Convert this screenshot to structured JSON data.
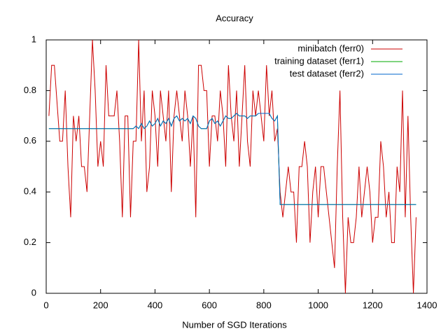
{
  "chart_data": {
    "type": "line",
    "title": "Accuracy",
    "xlabel": "Number of SGD Iterations",
    "x": [
      10,
      20,
      30,
      40,
      50,
      60,
      70,
      80,
      90,
      100,
      110,
      120,
      130,
      140,
      150,
      160,
      170,
      180,
      190,
      200,
      210,
      220,
      230,
      240,
      250,
      260,
      270,
      280,
      290,
      300,
      310,
      320,
      330,
      340,
      350,
      360,
      370,
      380,
      390,
      400,
      410,
      420,
      430,
      440,
      450,
      460,
      470,
      480,
      490,
      500,
      510,
      520,
      530,
      540,
      550,
      560,
      570,
      580,
      590,
      600,
      610,
      620,
      630,
      640,
      650,
      660,
      670,
      680,
      690,
      700,
      710,
      720,
      730,
      740,
      750,
      760,
      770,
      780,
      790,
      800,
      810,
      820,
      830,
      840,
      850,
      860,
      870,
      880,
      890,
      900,
      910,
      920,
      930,
      940,
      950,
      960,
      970,
      980,
      990,
      1000,
      1010,
      1020,
      1030,
      1040,
      1050,
      1060,
      1070,
      1080,
      1090,
      1100,
      1110,
      1120,
      1130,
      1140,
      1150,
      1160,
      1170,
      1180,
      1190,
      1200,
      1210,
      1220,
      1230,
      1240,
      1250,
      1260,
      1270,
      1280,
      1290,
      1300,
      1310,
      1320,
      1330,
      1340,
      1350,
      1360
    ],
    "series": [
      {
        "name": "minibatch (ferr0)",
        "color": "#cc0000",
        "values": [
          0.7,
          0.9,
          0.9,
          0.75,
          0.6,
          0.6,
          0.8,
          0.5,
          0.3,
          0.7,
          0.6,
          0.7,
          0.5,
          0.5,
          0.4,
          0.7,
          1,
          0.8,
          0.5,
          0.6,
          0.5,
          0.9,
          0.7,
          0.7,
          0.7,
          0.8,
          0.6,
          0.3,
          0.7,
          0.7,
          0.3,
          0.6,
          0.6,
          1,
          0.6,
          0.8,
          0.4,
          0.5,
          0.8,
          0.7,
          0.5,
          0.8,
          0.7,
          0.6,
          0.8,
          0.4,
          0.7,
          0.8,
          0.7,
          0.6,
          0.8,
          0.7,
          0.5,
          0.7,
          0.3,
          0.9,
          0.9,
          0.8,
          0.8,
          0.5,
          0.7,
          0.7,
          0.6,
          0.8,
          0.7,
          0.5,
          0.9,
          0.7,
          0.6,
          0.8,
          0.5,
          0.7,
          0.9,
          0.6,
          0.5,
          0.8,
          0.7,
          0.8,
          0.7,
          0.6,
          0.9,
          0.7,
          0.8,
          0.6,
          0.65,
          0.4,
          0.3,
          0.4,
          0.5,
          0.4,
          0.4,
          0.2,
          0.5,
          0.5,
          0.6,
          0.5,
          0.2,
          0.4,
          0.5,
          0.3,
          0.5,
          0.5,
          0.4,
          0.3,
          0.2,
          0.1,
          0.5,
          0.8,
          0.3,
          0,
          0.3,
          0.2,
          0.2,
          0.3,
          0.5,
          0.3,
          0.4,
          0.5,
          0.4,
          0.2,
          0.3,
          0.3,
          0.6,
          0.5,
          0.3,
          0.4,
          0.2,
          0.2,
          0.5,
          0.4,
          0.8,
          0.3,
          0.7,
          0.3,
          0,
          0.3
        ]
      },
      {
        "name": "training dataset (ferr1)",
        "color": "#00aa00",
        "values": [
          0.65,
          0.65,
          0.65,
          0.65,
          0.65,
          0.65,
          0.65,
          0.65,
          0.65,
          0.65,
          0.65,
          0.65,
          0.65,
          0.65,
          0.65,
          0.65,
          0.65,
          0.65,
          0.65,
          0.65,
          0.65,
          0.65,
          0.65,
          0.65,
          0.65,
          0.65,
          0.65,
          0.65,
          0.65,
          0.65,
          0.65,
          0.65,
          0.66,
          0.65,
          0.67,
          0.65,
          0.66,
          0.68,
          0.66,
          0.67,
          0.69,
          0.66,
          0.68,
          0.67,
          0.69,
          0.66,
          0.69,
          0.7,
          0.68,
          0.69,
          0.68,
          0.69,
          0.67,
          0.7,
          0.69,
          0.66,
          0.65,
          0.65,
          0.65,
          0.68,
          0.69,
          0.67,
          0.68,
          0.66,
          0.68,
          0.7,
          0.69,
          0.69,
          0.7,
          0.71,
          0.7,
          0.7,
          0.7,
          0.69,
          0.7,
          0.7,
          0.7,
          0.71,
          0.71,
          0.71,
          0.71,
          0.71,
          0.69,
          0.68,
          0.7,
          0.35,
          0.35,
          0.35,
          0.35,
          0.35,
          0.35,
          0.35,
          0.35,
          0.35,
          0.35,
          0.35,
          0.35,
          0.35,
          0.35,
          0.35,
          0.35,
          0.35,
          0.35,
          0.35,
          0.35,
          0.35,
          0.35,
          0.35,
          0.35,
          0.35,
          0.35,
          0.35,
          0.35,
          0.35,
          0.35,
          0.35,
          0.35,
          0.35,
          0.35,
          0.35,
          0.35,
          0.35,
          0.35,
          0.35,
          0.35,
          0.35,
          0.35,
          0.35,
          0.35,
          0.35,
          0.35,
          0.35,
          0.35,
          0.35,
          0.35,
          0.35
        ]
      },
      {
        "name": "test dataset (ferr2)",
        "color": "#0066cc",
        "values": [
          0.65,
          0.65,
          0.65,
          0.65,
          0.65,
          0.65,
          0.65,
          0.65,
          0.65,
          0.65,
          0.65,
          0.65,
          0.65,
          0.65,
          0.65,
          0.65,
          0.65,
          0.65,
          0.65,
          0.65,
          0.65,
          0.65,
          0.65,
          0.65,
          0.65,
          0.65,
          0.65,
          0.65,
          0.65,
          0.65,
          0.65,
          0.65,
          0.66,
          0.65,
          0.67,
          0.65,
          0.66,
          0.68,
          0.66,
          0.67,
          0.69,
          0.66,
          0.68,
          0.67,
          0.69,
          0.66,
          0.69,
          0.7,
          0.68,
          0.69,
          0.68,
          0.69,
          0.67,
          0.7,
          0.69,
          0.66,
          0.65,
          0.65,
          0.65,
          0.68,
          0.69,
          0.67,
          0.68,
          0.66,
          0.68,
          0.7,
          0.69,
          0.69,
          0.7,
          0.71,
          0.7,
          0.7,
          0.7,
          0.69,
          0.7,
          0.7,
          0.7,
          0.71,
          0.71,
          0.71,
          0.71,
          0.71,
          0.69,
          0.68,
          0.7,
          0.35,
          0.35,
          0.35,
          0.35,
          0.35,
          0.35,
          0.35,
          0.35,
          0.35,
          0.35,
          0.35,
          0.35,
          0.35,
          0.35,
          0.35,
          0.35,
          0.35,
          0.35,
          0.35,
          0.35,
          0.35,
          0.35,
          0.35,
          0.35,
          0.35,
          0.35,
          0.35,
          0.35,
          0.35,
          0.35,
          0.35,
          0.35,
          0.35,
          0.35,
          0.35,
          0.35,
          0.35,
          0.35,
          0.35,
          0.35,
          0.35,
          0.35,
          0.35,
          0.35,
          0.35,
          0.35,
          0.35,
          0.35,
          0.35,
          0.35,
          0.35
        ]
      }
    ],
    "xlim": [
      0,
      1400
    ],
    "xticks": [
      0,
      200,
      400,
      600,
      800,
      1000,
      1200,
      1400
    ],
    "ylim": [
      0,
      1
    ],
    "yticks": [
      0,
      0.2,
      0.4,
      0.6,
      0.8,
      1
    ],
    "grid": false,
    "legend": "top-right"
  }
}
